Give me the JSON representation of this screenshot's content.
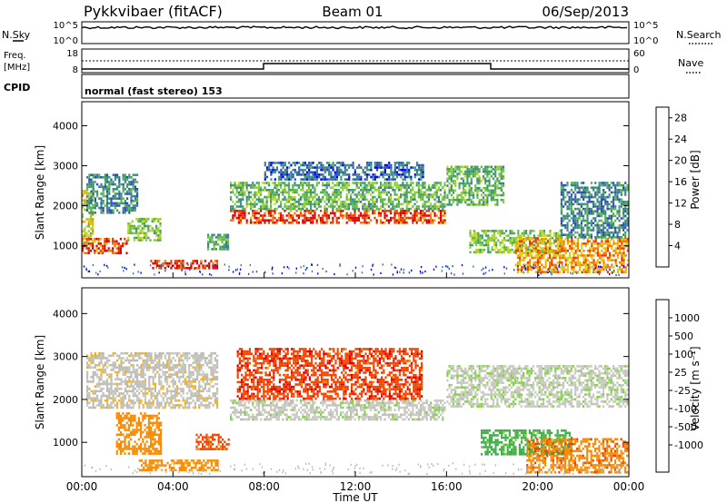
{
  "header": {
    "title": "Pykkvibaer (fitACF)",
    "beam": "Beam 01",
    "date": "06/Sep/2013"
  },
  "strip_nsky": {
    "label": "N.Sky",
    "left_ticks": [
      "10^5",
      "10^0"
    ],
    "right_ticks": [
      "10^5",
      "10^0"
    ],
    "right_label": "N.Search"
  },
  "strip_freq": {
    "label_top": "Freq.",
    "label_unit": "[MHz]",
    "left_ticks": [
      "18",
      "8"
    ],
    "right_ticks": [
      "60",
      "0"
    ],
    "right_label": "Nave",
    "cpid_label": "CPID",
    "cpid_text": "normal (fast stereo) 153"
  },
  "palettes": {
    "power": [
      "#0000ff",
      "#2d4fb5",
      "#3e7a99",
      "#3b9b6a",
      "#5ab84a",
      "#8fd12e",
      "#c9d61a",
      "#f4b400",
      "#f07b00",
      "#e83b00",
      "#e00000"
    ],
    "velocity": [
      "#e00000",
      "#f04400",
      "#f98a00",
      "#f9b000",
      "#bdbdb6",
      "#c9c9c2",
      "#7ed43a",
      "#3fae46",
      "#2f8a6a",
      "#2f5fa3",
      "#2030c8"
    ]
  },
  "chart_data": [
    {
      "type": "heatmap",
      "name": "power",
      "title": "",
      "xlabel": "",
      "ylabel": "Slant Range [km]",
      "xlim": [
        0,
        24
      ],
      "ylim": [
        200,
        4600
      ],
      "yticks": [
        "1000",
        "2000",
        "3000",
        "4000"
      ],
      "colorbar": {
        "label": "Power [dB]",
        "ticks": [
          "4",
          "8",
          "12",
          "16",
          "20",
          "24",
          "28"
        ],
        "range": [
          0,
          30
        ]
      },
      "bands": [
        {
          "t0": 0.0,
          "t1": 0.5,
          "r0": 1000,
          "r1": 2400,
          "v": 18
        },
        {
          "t0": 0.2,
          "t1": 2.5,
          "r0": 1800,
          "r1": 2800,
          "v": 8
        },
        {
          "t0": 0.0,
          "t1": 2.0,
          "r0": 800,
          "r1": 1200,
          "v": 26
        },
        {
          "t0": 2.0,
          "t1": 3.5,
          "r0": 1100,
          "r1": 1700,
          "v": 14
        },
        {
          "t0": 3.0,
          "t1": 6.0,
          "r0": 400,
          "r1": 650,
          "v": 28
        },
        {
          "t0": 5.5,
          "t1": 6.5,
          "r0": 900,
          "r1": 1300,
          "v": 10
        },
        {
          "t0": 6.5,
          "t1": 16.0,
          "r0": 1550,
          "r1": 1900,
          "v": 26
        },
        {
          "t0": 6.5,
          "t1": 16.0,
          "r0": 1900,
          "r1": 2600,
          "v": 12
        },
        {
          "t0": 8.0,
          "t1": 15.0,
          "r0": 2600,
          "r1": 3100,
          "v": 6
        },
        {
          "t0": 16.0,
          "t1": 18.5,
          "r0": 2000,
          "r1": 3000,
          "v": 12
        },
        {
          "t0": 17.0,
          "t1": 21.0,
          "r0": 800,
          "r1": 1400,
          "v": 14
        },
        {
          "t0": 19.0,
          "t1": 24.0,
          "r0": 300,
          "r1": 1200,
          "v": 22
        },
        {
          "t0": 21.0,
          "t1": 24.0,
          "r0": 1200,
          "r1": 2600,
          "v": 8
        }
      ]
    },
    {
      "type": "heatmap",
      "name": "velocity",
      "title": "",
      "xlabel": "Time UT",
      "ylabel": "Slant Range [km]",
      "xlim": [
        0,
        24
      ],
      "ylim": [
        200,
        4600
      ],
      "xticks": [
        "00:00",
        "04:00",
        "08:00",
        "12:00",
        "16:00",
        "20:00",
        "00:00"
      ],
      "yticks": [
        "1000",
        "2000",
        "3000",
        "4000"
      ],
      "colorbar": {
        "label": "Velocity [m s⁻¹]",
        "ticks": [
          "-1000",
          "-500",
          "-100",
          "-25",
          "25",
          "100",
          "500",
          "1000"
        ]
      },
      "bands": [
        {
          "t0": 0.2,
          "t1": 6.0,
          "r0": 1800,
          "r1": 3100,
          "v": -10
        },
        {
          "t0": 1.5,
          "t1": 3.5,
          "r0": 700,
          "r1": 1700,
          "v": -300
        },
        {
          "t0": 2.5,
          "t1": 6.0,
          "r0": 300,
          "r1": 600,
          "v": -150
        },
        {
          "t0": 5.0,
          "t1": 6.5,
          "r0": 800,
          "r1": 1200,
          "v": -600
        },
        {
          "t0": 6.5,
          "t1": 16.0,
          "r0": 1500,
          "r1": 2000,
          "v": 10
        },
        {
          "t0": 6.8,
          "t1": 15.0,
          "r0": 2000,
          "r1": 3200,
          "v": -800
        },
        {
          "t0": 16.0,
          "t1": 24.0,
          "r0": 1800,
          "r1": 2800,
          "v": 15
        },
        {
          "t0": 17.5,
          "t1": 21.5,
          "r0": 700,
          "r1": 1300,
          "v": 150
        },
        {
          "t0": 19.5,
          "t1": 24.0,
          "r0": 300,
          "r1": 1100,
          "v": -400
        }
      ]
    }
  ]
}
